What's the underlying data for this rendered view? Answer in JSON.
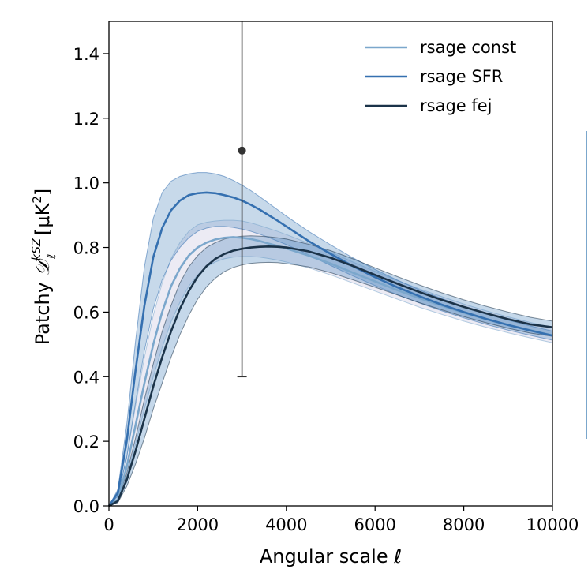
{
  "chart_data": {
    "type": "line",
    "xlabel": "Angular scale ℓ",
    "ylabel": {
      "prefix": "Patchy ",
      "symbol": "𝒟",
      "superscript": "kSZ",
      "subscript": "ℓ",
      "unit_open": " [μK",
      "unit_power": "2",
      "unit_close": "]"
    },
    "xlim": [
      0,
      10000
    ],
    "ylim": [
      0,
      1.5
    ],
    "xticks": [
      0,
      2000,
      4000,
      6000,
      8000,
      10000
    ],
    "xtick_labels": [
      "0",
      "2000",
      "4000",
      "6000",
      "8000",
      "10000"
    ],
    "yticks": [
      0.0,
      0.2,
      0.4,
      0.6,
      0.8,
      1.0,
      1.2,
      1.4
    ],
    "ytick_labels": [
      "0.0",
      "0.2",
      "0.4",
      "0.6",
      "0.8",
      "1.0",
      "1.2",
      "1.4"
    ],
    "grid": false,
    "legend_position": "top-right",
    "series": [
      {
        "name": "rsage const",
        "color": "#7ba7cc",
        "x": [
          0,
          200,
          400,
          600,
          800,
          1000,
          1200,
          1400,
          1600,
          1800,
          2000,
          2200,
          2400,
          2600,
          2800,
          3000,
          3200,
          3400,
          3600,
          3800,
          4000,
          4500,
          5000,
          5500,
          6000,
          6500,
          7000,
          7500,
          8000,
          8500,
          9000,
          9500,
          10000
        ],
        "y": [
          0,
          0.02,
          0.12,
          0.25,
          0.38,
          0.5,
          0.6,
          0.68,
          0.735,
          0.775,
          0.8,
          0.815,
          0.825,
          0.83,
          0.832,
          0.83,
          0.826,
          0.82,
          0.812,
          0.805,
          0.797,
          0.775,
          0.75,
          0.722,
          0.695,
          0.668,
          0.643,
          0.62,
          0.598,
          0.578,
          0.56,
          0.544,
          0.528
        ],
        "band_lower": [
          0,
          0.015,
          0.09,
          0.19,
          0.3,
          0.4,
          0.49,
          0.57,
          0.63,
          0.68,
          0.715,
          0.74,
          0.755,
          0.765,
          0.77,
          0.772,
          0.772,
          0.77,
          0.766,
          0.761,
          0.755,
          0.737,
          0.715,
          0.69,
          0.665,
          0.64,
          0.615,
          0.593,
          0.572,
          0.553,
          0.536,
          0.52,
          0.505
        ],
        "band_upper": [
          0,
          0.03,
          0.15,
          0.31,
          0.46,
          0.59,
          0.69,
          0.765,
          0.815,
          0.85,
          0.87,
          0.878,
          0.882,
          0.884,
          0.884,
          0.882,
          0.876,
          0.868,
          0.859,
          0.85,
          0.84,
          0.813,
          0.785,
          0.755,
          0.726,
          0.698,
          0.672,
          0.648,
          0.625,
          0.604,
          0.585,
          0.568,
          0.552
        ]
      },
      {
        "name": "rsage SFR",
        "color": "#3570b0",
        "x": [
          0,
          200,
          400,
          600,
          800,
          1000,
          1200,
          1400,
          1600,
          1800,
          2000,
          2200,
          2400,
          2600,
          2800,
          3000,
          3200,
          3400,
          3600,
          3800,
          4000,
          4500,
          5000,
          5500,
          6000,
          6500,
          7000,
          7500,
          8000,
          8500,
          9000,
          9500,
          10000
        ],
        "y": [
          0,
          0.04,
          0.2,
          0.42,
          0.62,
          0.77,
          0.86,
          0.915,
          0.945,
          0.962,
          0.968,
          0.97,
          0.968,
          0.962,
          0.955,
          0.945,
          0.932,
          0.917,
          0.9,
          0.883,
          0.865,
          0.82,
          0.78,
          0.742,
          0.708,
          0.677,
          0.649,
          0.623,
          0.6,
          0.579,
          0.56,
          0.543,
          0.527
        ],
        "band_lower": [
          0,
          0.03,
          0.15,
          0.32,
          0.48,
          0.61,
          0.7,
          0.76,
          0.8,
          0.83,
          0.85,
          0.86,
          0.865,
          0.865,
          0.862,
          0.857,
          0.85,
          0.841,
          0.831,
          0.82,
          0.809,
          0.777,
          0.744,
          0.712,
          0.682,
          0.654,
          0.628,
          0.604,
          0.582,
          0.562,
          0.544,
          0.528,
          0.513
        ],
        "band_upper": [
          0,
          0.05,
          0.25,
          0.51,
          0.74,
          0.89,
          0.97,
          1.005,
          1.02,
          1.028,
          1.032,
          1.032,
          1.028,
          1.02,
          1.008,
          0.993,
          0.976,
          0.957,
          0.937,
          0.917,
          0.897,
          0.85,
          0.808,
          0.768,
          0.732,
          0.699,
          0.669,
          0.642,
          0.617,
          0.595,
          0.575,
          0.557,
          0.541
        ]
      },
      {
        "name": "rsage fej",
        "color": "#1b3349",
        "x": [
          0,
          200,
          400,
          600,
          800,
          1000,
          1200,
          1400,
          1600,
          1800,
          2000,
          2200,
          2400,
          2600,
          2800,
          3000,
          3200,
          3400,
          3600,
          3800,
          4000,
          4500,
          5000,
          5500,
          6000,
          6500,
          7000,
          7500,
          8000,
          8500,
          9000,
          9500,
          10000
        ],
        "y": [
          0,
          0.015,
          0.08,
          0.17,
          0.27,
          0.37,
          0.46,
          0.54,
          0.61,
          0.665,
          0.71,
          0.742,
          0.765,
          0.78,
          0.79,
          0.796,
          0.8,
          0.802,
          0.803,
          0.802,
          0.8,
          0.788,
          0.768,
          0.743,
          0.715,
          0.688,
          0.662,
          0.638,
          0.616,
          0.596,
          0.578,
          0.562,
          0.553
        ],
        "band_lower": [
          0,
          0.01,
          0.06,
          0.13,
          0.21,
          0.3,
          0.38,
          0.46,
          0.53,
          0.59,
          0.64,
          0.678,
          0.705,
          0.725,
          0.738,
          0.746,
          0.751,
          0.753,
          0.754,
          0.753,
          0.75,
          0.74,
          0.722,
          0.7,
          0.677,
          0.653,
          0.629,
          0.607,
          0.586,
          0.567,
          0.55,
          0.535,
          0.525
        ],
        "band_upper": [
          0,
          0.02,
          0.1,
          0.21,
          0.33,
          0.44,
          0.54,
          0.62,
          0.69,
          0.74,
          0.775,
          0.8,
          0.815,
          0.826,
          0.832,
          0.835,
          0.836,
          0.835,
          0.833,
          0.83,
          0.826,
          0.81,
          0.79,
          0.765,
          0.737,
          0.71,
          0.684,
          0.66,
          0.638,
          0.618,
          0.6,
          0.584,
          0.572
        ]
      }
    ],
    "error_point": {
      "x": 3000,
      "y": 1.1,
      "yerr_low": 0.4,
      "yerr_high": 1.5,
      "color": "#333333"
    }
  }
}
